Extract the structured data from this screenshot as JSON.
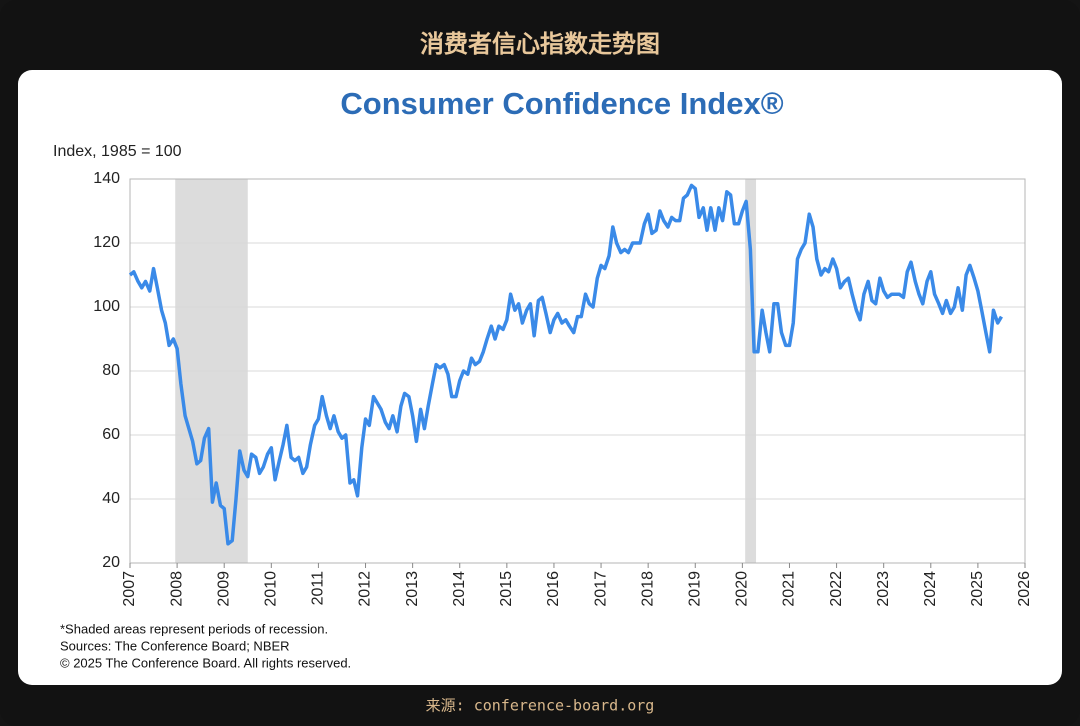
{
  "header": {
    "title": "消费者信心指数走势图"
  },
  "chart_data": {
    "type": "line",
    "title": "Consumer Confidence Index®",
    "y_label": "Index, 1985 = 100",
    "notes": [
      "*Shaded areas represent periods of recession.",
      "Sources: The Conference Board;  NBER",
      "© 2025 The Conference Board. All rights reserved."
    ],
    "xlim": [
      2007,
      2026
    ],
    "xticks": [
      2007,
      2008,
      2009,
      2010,
      2011,
      2012,
      2013,
      2014,
      2015,
      2016,
      2017,
      2018,
      2019,
      2020,
      2021,
      2022,
      2023,
      2024,
      2025,
      2026
    ],
    "ylim": [
      20,
      140
    ],
    "yticks": [
      20,
      40,
      60,
      80,
      100,
      120,
      140
    ],
    "grid": true,
    "recessions": [
      [
        2007.96,
        2009.5
      ],
      [
        2020.06,
        2020.29
      ]
    ],
    "recession_color": "#dcdcdc",
    "x": [
      2007.0,
      2007.08,
      2007.17,
      2007.25,
      2007.33,
      2007.42,
      2007.5,
      2007.58,
      2007.67,
      2007.75,
      2007.83,
      2007.92,
      2008.0,
      2008.08,
      2008.17,
      2008.25,
      2008.33,
      2008.42,
      2008.5,
      2008.58,
      2008.67,
      2008.75,
      2008.83,
      2008.92,
      2009.0,
      2009.08,
      2009.17,
      2009.25,
      2009.33,
      2009.42,
      2009.5,
      2009.58,
      2009.67,
      2009.75,
      2009.83,
      2009.92,
      2010.0,
      2010.08,
      2010.17,
      2010.25,
      2010.33,
      2010.42,
      2010.5,
      2010.58,
      2010.67,
      2010.75,
      2010.83,
      2010.92,
      2011.0,
      2011.08,
      2011.17,
      2011.25,
      2011.33,
      2011.42,
      2011.5,
      2011.58,
      2011.67,
      2011.75,
      2011.83,
      2011.92,
      2012.0,
      2012.08,
      2012.17,
      2012.25,
      2012.33,
      2012.42,
      2012.5,
      2012.58,
      2012.67,
      2012.75,
      2012.83,
      2012.92,
      2013.0,
      2013.08,
      2013.17,
      2013.25,
      2013.33,
      2013.42,
      2013.5,
      2013.58,
      2013.67,
      2013.75,
      2013.83,
      2013.92,
      2014.0,
      2014.08,
      2014.17,
      2014.25,
      2014.33,
      2014.42,
      2014.5,
      2014.58,
      2014.67,
      2014.75,
      2014.83,
      2014.92,
      2015.0,
      2015.08,
      2015.17,
      2015.25,
      2015.33,
      2015.42,
      2015.5,
      2015.58,
      2015.67,
      2015.75,
      2015.83,
      2015.92,
      2016.0,
      2016.08,
      2016.17,
      2016.25,
      2016.33,
      2016.42,
      2016.5,
      2016.58,
      2016.67,
      2016.75,
      2016.83,
      2016.92,
      2017.0,
      2017.08,
      2017.17,
      2017.25,
      2017.33,
      2017.42,
      2017.5,
      2017.58,
      2017.67,
      2017.75,
      2017.83,
      2017.92,
      2018.0,
      2018.08,
      2018.17,
      2018.25,
      2018.33,
      2018.42,
      2018.5,
      2018.58,
      2018.67,
      2018.75,
      2018.83,
      2018.92,
      2019.0,
      2019.08,
      2019.17,
      2019.25,
      2019.33,
      2019.42,
      2019.5,
      2019.58,
      2019.67,
      2019.75,
      2019.83,
      2019.92,
      2020.0,
      2020.08,
      2020.17,
      2020.25,
      2020.33,
      2020.42,
      2020.5,
      2020.58,
      2020.67,
      2020.75,
      2020.83,
      2020.92,
      2021.0,
      2021.08,
      2021.17,
      2021.25,
      2021.33,
      2021.42,
      2021.5,
      2021.58,
      2021.67,
      2021.75,
      2021.83,
      2021.92,
      2022.0,
      2022.08,
      2022.17,
      2022.25,
      2022.33,
      2022.42,
      2022.5,
      2022.58,
      2022.67,
      2022.75,
      2022.83,
      2022.92,
      2023.0,
      2023.08,
      2023.17,
      2023.25,
      2023.33,
      2023.42,
      2023.5,
      2023.58,
      2023.67,
      2023.75,
      2023.83,
      2023.92,
      2024.0,
      2024.08,
      2024.17,
      2024.25,
      2024.33,
      2024.42,
      2024.5,
      2024.58,
      2024.67,
      2024.75,
      2024.83,
      2024.92,
      2025.0,
      2025.08,
      2025.17,
      2025.25,
      2025.33,
      2025.42,
      2025.5
    ],
    "series": [
      {
        "color": "#3a8ae8",
        "values": [
          110,
          111,
          108,
          106,
          108,
          105,
          112,
          106,
          99,
          95,
          88,
          90,
          87,
          76,
          66,
          62,
          58,
          51,
          52,
          59,
          62,
          39,
          45,
          38,
          37,
          26,
          27,
          40,
          55,
          49,
          47,
          54,
          53,
          48,
          50,
          54,
          56,
          46,
          52,
          57,
          63,
          53,
          52,
          53,
          48,
          50,
          57,
          63,
          65,
          72,
          66,
          62,
          66,
          61,
          59,
          60,
          45,
          46,
          41,
          56,
          65,
          63,
          72,
          70,
          68,
          64,
          62,
          66,
          61,
          69,
          73,
          72,
          66,
          58,
          68,
          62,
          69,
          76,
          82,
          81,
          82,
          79,
          72,
          72,
          77,
          80,
          79,
          84,
          82,
          83,
          86,
          90,
          94,
          90,
          94,
          93,
          96,
          104,
          99,
          101,
          95,
          99,
          101,
          91,
          102,
          103,
          98,
          92,
          96,
          98,
          95,
          96,
          94,
          92,
          97,
          97,
          104,
          101,
          100,
          109,
          113,
          112,
          116,
          125,
          120,
          117,
          118,
          117,
          120,
          120,
          120,
          126,
          129,
          123,
          124,
          130,
          127,
          125,
          128,
          127,
          127,
          134,
          135,
          138,
          137,
          128,
          131,
          124,
          131,
          124,
          131,
          127,
          136,
          135,
          126,
          126,
          130,
          133,
          118,
          86,
          86,
          99,
          92,
          86,
          101,
          101,
          92,
          88,
          88,
          95,
          115,
          118,
          120,
          129,
          125,
          115,
          110,
          112,
          111,
          115,
          112,
          106,
          108,
          109,
          104,
          99,
          96,
          104,
          108,
          102,
          101,
          109,
          105,
          103,
          104,
          104,
          104,
          103,
          111,
          114,
          108,
          104,
          101,
          108,
          111,
          104,
          101,
          98,
          102,
          98,
          100,
          106,
          99,
          110,
          113,
          109,
          105,
          99,
          92,
          86,
          99,
          95,
          97
        ]
      }
    ]
  },
  "footer": {
    "source": "来源: conference-board.org"
  }
}
